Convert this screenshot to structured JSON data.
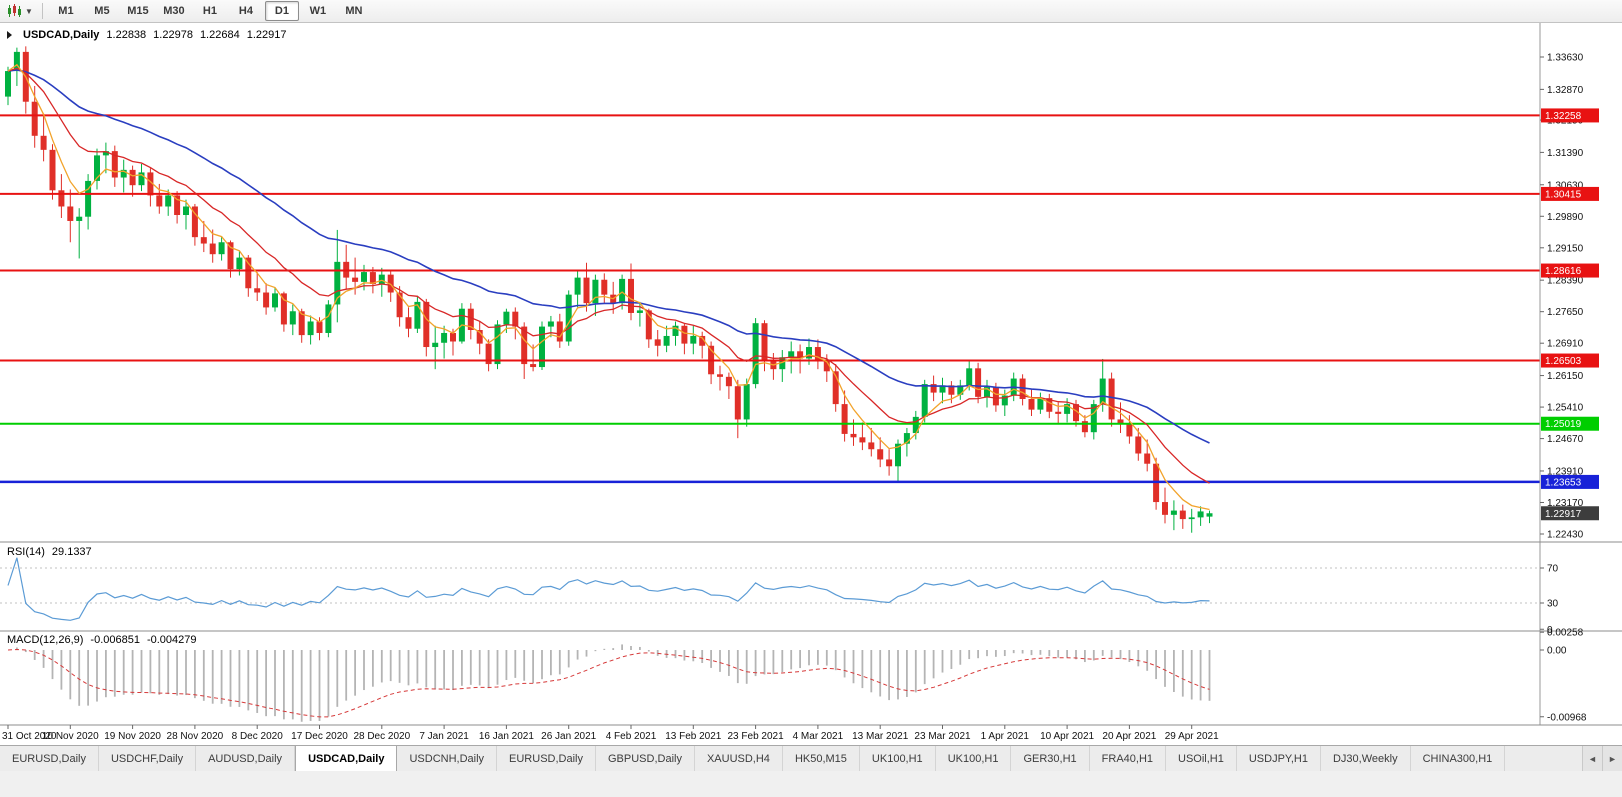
{
  "toolbar": {
    "chart_type_tooltip": "Candlesticks",
    "timeframes": [
      "M1",
      "M5",
      "M15",
      "M30",
      "H1",
      "H4",
      "D1",
      "W1",
      "MN"
    ],
    "active_timeframe": "D1"
  },
  "chart_header": {
    "symbol": "USDCAD,Daily",
    "open": "1.22838",
    "high": "1.22978",
    "low": "1.22684",
    "close": "1.22917"
  },
  "price_axis": {
    "labels": [
      "1.33630",
      "1.32870",
      "1.32150",
      "1.31390",
      "1.30630",
      "1.29890",
      "1.29150",
      "1.28390",
      "1.27650",
      "1.26910",
      "1.26150",
      "1.25410",
      "1.24670",
      "1.23910",
      "1.23170",
      "1.22430"
    ],
    "current_price": 1.22917,
    "current_price_label": "1.22917",
    "current_price_bg": "#3d3d3d"
  },
  "indicators": {
    "rsi": {
      "label": "RSI(14)",
      "value": "29.1337",
      "period": 14,
      "axis": [
        {
          "v": 70,
          "label": "70"
        },
        {
          "v": 30,
          "label": "30"
        },
        {
          "v": 0,
          "label": "0"
        }
      ],
      "level_lines": [
        70,
        30
      ],
      "color": "#5b9bd5"
    },
    "macd": {
      "label": "MACD(12,26,9)",
      "main": "-0.006851",
      "signal": "-0.004279",
      "fast": 12,
      "slow": 26,
      "smoothing": 9,
      "axis": [
        {
          "v": 0.00258,
          "label": "0.00258"
        },
        {
          "v": 0,
          "label": "0.00"
        },
        {
          "v": -0.00968,
          "label": "-0.00968"
        }
      ],
      "histogram_color": "#b4b4b4",
      "signal_color": "#d63a3a"
    }
  },
  "time_axis": {
    "labels": [
      "31 Oct 2020",
      "10 Nov 2020",
      "19 Nov 2020",
      "28 Nov 2020",
      "8 Dec 2020",
      "17 Dec 2020",
      "28 Dec 2020",
      "7 Jan 2021",
      "16 Jan 2021",
      "26 Jan 2021",
      "4 Feb 2021",
      "13 Feb 2021",
      "23 Feb 2021",
      "4 Mar 2021",
      "13 Mar 2021",
      "23 Mar 2021",
      "1 Apr 2021",
      "10 Apr 2021",
      "20 Apr 2021",
      "29 Apr 2021"
    ],
    "label_every_n_candles": 7
  },
  "tabs": {
    "items": [
      {
        "label": "EURUSD,Daily",
        "active": false
      },
      {
        "label": "USDCHF,Daily",
        "active": false
      },
      {
        "label": "AUDUSD,Daily",
        "active": false
      },
      {
        "label": "USDCAD,Daily",
        "active": true
      },
      {
        "label": "USDCNH,Daily",
        "active": false
      },
      {
        "label": "EURUSD,Daily",
        "active": false
      },
      {
        "label": "GBPUSD,Daily",
        "active": false
      },
      {
        "label": "XAUUSD,H4",
        "active": false
      },
      {
        "label": "HK50,M15",
        "active": false
      },
      {
        "label": "UK100,H1",
        "active": false
      },
      {
        "label": "UK100,H1",
        "active": false
      },
      {
        "label": "GER30,H1",
        "active": false
      },
      {
        "label": "FRA40,H1",
        "active": false
      },
      {
        "label": "USOil,H1",
        "active": false
      },
      {
        "label": "USDJPY,H1",
        "active": false
      },
      {
        "label": "DJ30,Weekly",
        "active": false
      },
      {
        "label": "CHINA300,H1",
        "active": false
      }
    ],
    "scroll_left": "◄",
    "scroll_right": "►"
  },
  "colors": {
    "bull": "#00b140",
    "bear": "#e02f28",
    "ma_slow": "#2a3ec0",
    "ma_mid": "#d82727",
    "ma_fast": "#f2a32b",
    "axis_text": "#111111",
    "separator": "#8c8c8c",
    "grid_dotted": "#c0c0c0"
  },
  "chart_data": {
    "type": "candlestick",
    "title": "USDCAD Daily",
    "symbol": "USDCAD",
    "timeframe": "Daily",
    "ylim": [
      1.2229,
      1.3436
    ],
    "horizontal_lines": [
      {
        "price": 1.32258,
        "label": "1.32258",
        "color": "#e81212",
        "width": 2
      },
      {
        "price": 1.30415,
        "label": "1.30415",
        "color": "#e81212",
        "width": 2
      },
      {
        "price": 1.28616,
        "label": "1.28616",
        "color": "#e81212",
        "width": 2
      },
      {
        "price": 1.26503,
        "label": "1.26503",
        "color": "#e81212",
        "width": 2
      },
      {
        "price": 1.25019,
        "label": "1.25019",
        "color": "#00ce00",
        "width": 2
      },
      {
        "price": 1.23653,
        "label": "1.23653",
        "color": "#1822d8",
        "width": 2.5
      }
    ],
    "overlays": [
      {
        "name": "ma-slow",
        "type": "ema",
        "period": 34,
        "color": "#2a3ec0",
        "width": 1.6
      },
      {
        "name": "ma-mid",
        "type": "ema",
        "period": 13,
        "color": "#d82727",
        "width": 1.3
      },
      {
        "name": "ma-fast",
        "type": "ema",
        "period": 5,
        "color": "#f2a32b",
        "width": 1.3
      }
    ],
    "candles": [
      [
        1.327,
        1.334,
        1.325,
        1.333
      ],
      [
        1.333,
        1.3385,
        1.3295,
        1.3375
      ],
      [
        1.3375,
        1.3388,
        1.323,
        1.3258
      ],
      [
        1.3258,
        1.3295,
        1.315,
        1.3178
      ],
      [
        1.3178,
        1.323,
        1.3118,
        1.3145
      ],
      [
        1.3145,
        1.3158,
        1.3028,
        1.305
      ],
      [
        1.305,
        1.3088,
        1.2985,
        1.3012
      ],
      [
        1.3012,
        1.3052,
        1.2928,
        1.2978
      ],
      [
        1.2978,
        1.3008,
        1.289,
        1.2988
      ],
      [
        1.2988,
        1.3088,
        1.2958,
        1.3072
      ],
      [
        1.3072,
        1.3148,
        1.3052,
        1.3132
      ],
      [
        1.3132,
        1.3162,
        1.309,
        1.3142
      ],
      [
        1.3142,
        1.3155,
        1.3058,
        1.308
      ],
      [
        1.308,
        1.3122,
        1.3045,
        1.3098
      ],
      [
        1.3098,
        1.3108,
        1.3035,
        1.3062
      ],
      [
        1.3062,
        1.3112,
        1.3048,
        1.3092
      ],
      [
        1.3092,
        1.3102,
        1.3012,
        1.3038
      ],
      [
        1.3038,
        1.3065,
        1.2995,
        1.3012
      ],
      [
        1.3012,
        1.3052,
        1.299,
        1.3038
      ],
      [
        1.3038,
        1.3048,
        1.2972,
        1.2992
      ],
      [
        1.2992,
        1.3028,
        1.2958,
        1.3012
      ],
      [
        1.3012,
        1.3018,
        1.292,
        1.294
      ],
      [
        1.294,
        1.2978,
        1.2905,
        1.2925
      ],
      [
        1.2925,
        1.2958,
        1.288,
        1.29
      ],
      [
        1.29,
        1.2942,
        1.2885,
        1.2928
      ],
      [
        1.2928,
        1.2932,
        1.2845,
        1.2865
      ],
      [
        1.2865,
        1.2908,
        1.285,
        1.2892
      ],
      [
        1.2892,
        1.2898,
        1.28,
        1.282
      ],
      [
        1.282,
        1.2858,
        1.279,
        1.281
      ],
      [
        1.281,
        1.2832,
        1.2758,
        1.2775
      ],
      [
        1.2775,
        1.2822,
        1.2765,
        1.2808
      ],
      [
        1.2808,
        1.2812,
        1.2718,
        1.2735
      ],
      [
        1.2735,
        1.2782,
        1.271,
        1.2766
      ],
      [
        1.2766,
        1.2772,
        1.2692,
        1.271
      ],
      [
        1.271,
        1.2756,
        1.2688,
        1.2742
      ],
      [
        1.2742,
        1.2752,
        1.2698,
        1.2715
      ],
      [
        1.2715,
        1.2792,
        1.2705,
        1.2782
      ],
      [
        1.2782,
        1.2957,
        1.274,
        1.2882
      ],
      [
        1.2882,
        1.2922,
        1.2818,
        1.2845
      ],
      [
        1.2845,
        1.2892,
        1.2805,
        1.2835
      ],
      [
        1.2835,
        1.2875,
        1.2815,
        1.2858
      ],
      [
        1.2858,
        1.287,
        1.2808,
        1.283
      ],
      [
        1.283,
        1.2868,
        1.28,
        1.2852
      ],
      [
        1.2852,
        1.2862,
        1.2788,
        1.281
      ],
      [
        1.281,
        1.2825,
        1.273,
        1.2752
      ],
      [
        1.2752,
        1.2775,
        1.2705,
        1.2725
      ],
      [
        1.2725,
        1.2802,
        1.2715,
        1.2788
      ],
      [
        1.2788,
        1.2795,
        1.266,
        1.2682
      ],
      [
        1.2682,
        1.2732,
        1.263,
        1.2692
      ],
      [
        1.2692,
        1.2732,
        1.2655,
        1.2715
      ],
      [
        1.2715,
        1.2725,
        1.2662,
        1.2695
      ],
      [
        1.2695,
        1.2785,
        1.269,
        1.2772
      ],
      [
        1.2772,
        1.2785,
        1.27,
        1.2722
      ],
      [
        1.2722,
        1.2742,
        1.2665,
        1.269
      ],
      [
        1.269,
        1.27,
        1.2625,
        1.2642
      ],
      [
        1.2642,
        1.2745,
        1.263,
        1.2735
      ],
      [
        1.2735,
        1.2772,
        1.2715,
        1.2765
      ],
      [
        1.2765,
        1.2775,
        1.27,
        1.273
      ],
      [
        1.273,
        1.274,
        1.2607,
        1.2642
      ],
      [
        1.2642,
        1.2688,
        1.2625,
        1.2635
      ],
      [
        1.2635,
        1.2742,
        1.2628,
        1.273
      ],
      [
        1.273,
        1.2755,
        1.2705,
        1.2742
      ],
      [
        1.2742,
        1.276,
        1.268,
        1.2695
      ],
      [
        1.2695,
        1.2815,
        1.2685,
        1.2805
      ],
      [
        1.2805,
        1.2862,
        1.2775,
        1.2845
      ],
      [
        1.2845,
        1.288,
        1.2765,
        1.2785
      ],
      [
        1.2785,
        1.2852,
        1.2755,
        1.284
      ],
      [
        1.284,
        1.2855,
        1.2785,
        1.2805
      ],
      [
        1.2805,
        1.2835,
        1.276,
        1.2785
      ],
      [
        1.2785,
        1.2852,
        1.277,
        1.2842
      ],
      [
        1.2842,
        1.2878,
        1.2745,
        1.2762
      ],
      [
        1.2762,
        1.2788,
        1.273,
        1.2768
      ],
      [
        1.2768,
        1.2772,
        1.268,
        1.27
      ],
      [
        1.27,
        1.2722,
        1.266,
        1.2685
      ],
      [
        1.2685,
        1.2732,
        1.267,
        1.2708
      ],
      [
        1.2708,
        1.2742,
        1.2685,
        1.2732
      ],
      [
        1.2732,
        1.2736,
        1.2665,
        1.269
      ],
      [
        1.269,
        1.2732,
        1.2665,
        1.2708
      ],
      [
        1.2708,
        1.2718,
        1.2655,
        1.2685
      ],
      [
        1.2685,
        1.2695,
        1.2595,
        1.2618
      ],
      [
        1.2618,
        1.2638,
        1.258,
        1.2612
      ],
      [
        1.2612,
        1.2622,
        1.256,
        1.259
      ],
      [
        1.259,
        1.2605,
        1.2468,
        1.2512
      ],
      [
        1.2512,
        1.2608,
        1.2495,
        1.2595
      ],
      [
        1.2595,
        1.275,
        1.2585,
        1.2738
      ],
      [
        1.2738,
        1.2745,
        1.2625,
        1.2652
      ],
      [
        1.2652,
        1.2668,
        1.2605,
        1.263
      ],
      [
        1.263,
        1.2675,
        1.26,
        1.2658
      ],
      [
        1.2658,
        1.2695,
        1.262,
        1.2672
      ],
      [
        1.2672,
        1.2688,
        1.262,
        1.2655
      ],
      [
        1.2655,
        1.2702,
        1.264,
        1.2682
      ],
      [
        1.2682,
        1.27,
        1.263,
        1.2648
      ],
      [
        1.2648,
        1.2665,
        1.26,
        1.2625
      ],
      [
        1.2625,
        1.2642,
        1.253,
        1.2548
      ],
      [
        1.2548,
        1.258,
        1.246,
        1.2478
      ],
      [
        1.2478,
        1.2512,
        1.245,
        1.247
      ],
      [
        1.247,
        1.2505,
        1.244,
        1.2458
      ],
      [
        1.2458,
        1.2492,
        1.2425,
        1.2442
      ],
      [
        1.2442,
        1.247,
        1.24,
        1.2418
      ],
      [
        1.2418,
        1.2442,
        1.238,
        1.2402
      ],
      [
        1.2402,
        1.2465,
        1.2365,
        1.2455
      ],
      [
        1.2455,
        1.2492,
        1.2425,
        1.248
      ],
      [
        1.248,
        1.2532,
        1.2465,
        1.2518
      ],
      [
        1.2518,
        1.2605,
        1.2505,
        1.2595
      ],
      [
        1.2595,
        1.2615,
        1.2555,
        1.2575
      ],
      [
        1.2575,
        1.261,
        1.255,
        1.2592
      ],
      [
        1.2592,
        1.2602,
        1.255,
        1.257
      ],
      [
        1.257,
        1.2605,
        1.2558,
        1.2592
      ],
      [
        1.2592,
        1.265,
        1.258,
        1.2632
      ],
      [
        1.2632,
        1.2645,
        1.255,
        1.2565
      ],
      [
        1.2565,
        1.2605,
        1.254,
        1.2588
      ],
      [
        1.2588,
        1.2598,
        1.253,
        1.2545
      ],
      [
        1.2545,
        1.2582,
        1.252,
        1.2568
      ],
      [
        1.2568,
        1.2622,
        1.2555,
        1.2608
      ],
      [
        1.2608,
        1.2618,
        1.2545,
        1.256
      ],
      [
        1.256,
        1.2582,
        1.252,
        1.2535
      ],
      [
        1.2535,
        1.2575,
        1.2525,
        1.2562
      ],
      [
        1.2562,
        1.2572,
        1.2515,
        1.253
      ],
      [
        1.253,
        1.2552,
        1.25,
        1.2525
      ],
      [
        1.2525,
        1.2562,
        1.2505,
        1.2548
      ],
      [
        1.2548,
        1.2558,
        1.2495,
        1.2508
      ],
      [
        1.2508,
        1.2522,
        1.247,
        1.2482
      ],
      [
        1.2482,
        1.2558,
        1.2465,
        1.2548
      ],
      [
        1.2548,
        1.2654,
        1.253,
        1.2608
      ],
      [
        1.2608,
        1.2622,
        1.2495,
        1.2512
      ],
      [
        1.2512,
        1.2552,
        1.248,
        1.2502
      ],
      [
        1.2502,
        1.2522,
        1.2455,
        1.2472
      ],
      [
        1.2472,
        1.2492,
        1.2415,
        1.2432
      ],
      [
        1.2432,
        1.2465,
        1.239,
        1.2408
      ],
      [
        1.2408,
        1.2422,
        1.23,
        1.2318
      ],
      [
        1.2318,
        1.2352,
        1.2268,
        1.2288
      ],
      [
        1.2288,
        1.2322,
        1.2252,
        1.2298
      ],
      [
        1.2298,
        1.2312,
        1.2255,
        1.2278
      ],
      [
        1.2278,
        1.2302,
        1.2246,
        1.2282
      ],
      [
        1.2282,
        1.2308,
        1.2262,
        1.2296
      ],
      [
        1.22838,
        1.22978,
        1.22684,
        1.22917
      ]
    ]
  }
}
